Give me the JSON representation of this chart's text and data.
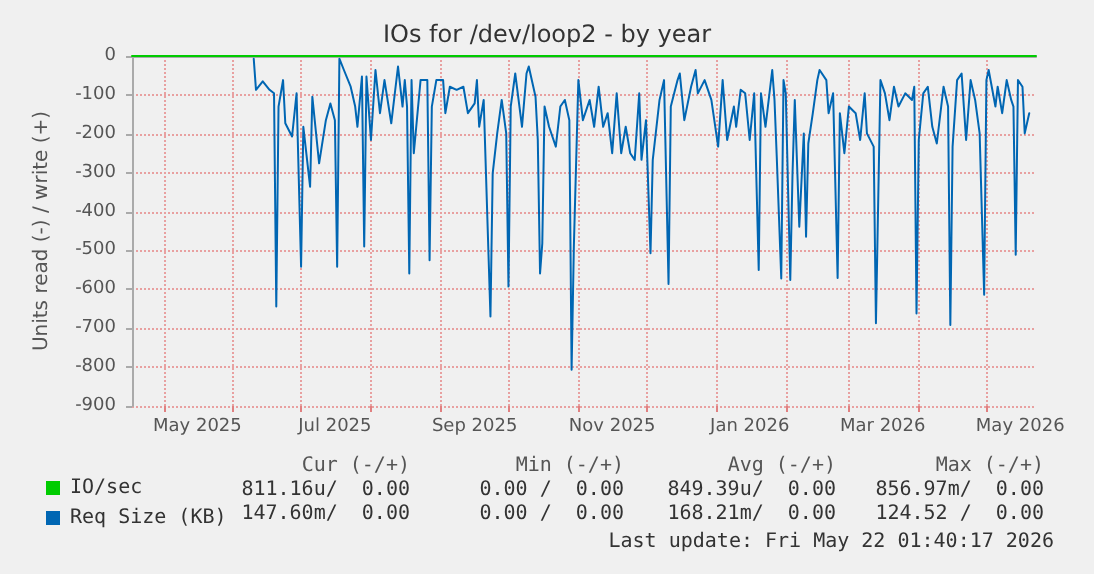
{
  "chart_data": {
    "type": "line",
    "title": "IOs for /dev/loop2 - by year",
    "ylabel": "Units read (-) / write (+)",
    "xlim": [
      "2025-04-17",
      "2026-05-23"
    ],
    "xticks": [
      {
        "value": "2025-05-01",
        "label": null
      },
      {
        "value": "2025-05-16",
        "label": "May 2025"
      },
      {
        "value": "2025-06-01",
        "label": null
      },
      {
        "value": "2025-07-01",
        "label": null
      },
      {
        "value": "2025-07-16",
        "label": "Jul 2025"
      },
      {
        "value": "2025-08-01",
        "label": null
      },
      {
        "value": "2025-09-01",
        "label": null
      },
      {
        "value": "2025-09-16",
        "label": "Sep 2025"
      },
      {
        "value": "2025-10-01",
        "label": null
      },
      {
        "value": "2025-11-01",
        "label": null
      },
      {
        "value": "2025-11-16",
        "label": "Nov 2025"
      },
      {
        "value": "2025-12-01",
        "label": null
      },
      {
        "value": "2026-01-01",
        "label": null
      },
      {
        "value": "2026-01-16",
        "label": "Jan 2026"
      },
      {
        "value": "2026-02-01",
        "label": null
      },
      {
        "value": "2026-03-01",
        "label": null
      },
      {
        "value": "2026-03-16",
        "label": "Mar 2026"
      },
      {
        "value": "2026-04-01",
        "label": null
      },
      {
        "value": "2026-05-01",
        "label": null
      },
      {
        "value": "2026-05-16",
        "label": "May 2026"
      }
    ],
    "ylim": [
      -900,
      0
    ],
    "yticks": [
      -900,
      -800,
      -700,
      -600,
      -500,
      -400,
      -300,
      -200,
      -100,
      0
    ],
    "grid": true,
    "legend": "bottom left",
    "line_style": "solid",
    "marker": "none",
    "series": [
      {
        "name": "IO/sec",
        "color": "#00cc00",
        "x": [
          "2025-04-17",
          "2026-05-23"
        ],
        "values": [
          0,
          0
        ]
      },
      {
        "name": "Req Size (KB)",
        "color": "#0066b3",
        "x": [
          "2025-06-10",
          "2025-06-11",
          "2025-06-14",
          "2025-06-17",
          "2025-06-19",
          "2025-06-20",
          "2025-06-21",
          "2025-06-23",
          "2025-06-24",
          "2025-06-27",
          "2025-06-29",
          "2025-07-01",
          "2025-07-02",
          "2025-07-05",
          "2025-07-06",
          "2025-07-09",
          "2025-07-12",
          "2025-07-14",
          "2025-07-16",
          "2025-07-17",
          "2025-07-18",
          "2025-07-20",
          "2025-07-23",
          "2025-07-25",
          "2025-07-26",
          "2025-07-28",
          "2025-07-29",
          "2025-07-30",
          "2025-08-01",
          "2025-08-03",
          "2025-08-05",
          "2025-08-07",
          "2025-08-10",
          "2025-08-13",
          "2025-08-15",
          "2025-08-16",
          "2025-08-17",
          "2025-08-18",
          "2025-08-19",
          "2025-08-20",
          "2025-08-23",
          "2025-08-26",
          "2025-08-27",
          "2025-08-28",
          "2025-08-30",
          "2025-09-02",
          "2025-09-03",
          "2025-09-05",
          "2025-09-08",
          "2025-09-11",
          "2025-09-13",
          "2025-09-16",
          "2025-09-17",
          "2025-09-18",
          "2025-09-20",
          "2025-09-23",
          "2025-09-24",
          "2025-09-26",
          "2025-09-28",
          "2025-09-30",
          "2025-10-01",
          "2025-10-02",
          "2025-10-04",
          "2025-10-07",
          "2025-10-09",
          "2025-10-10",
          "2025-10-13",
          "2025-10-14",
          "2025-10-15",
          "2025-10-16",
          "2025-10-17",
          "2025-10-19",
          "2025-10-22",
          "2025-10-24",
          "2025-10-26",
          "2025-10-28",
          "2025-10-29",
          "2025-10-30",
          "2025-11-01",
          "2025-11-03",
          "2025-11-06",
          "2025-11-08",
          "2025-11-10",
          "2025-11-12",
          "2025-11-14",
          "2025-11-16",
          "2025-11-18",
          "2025-11-20",
          "2025-11-22",
          "2025-11-24",
          "2025-11-26",
          "2025-11-28",
          "2025-11-29",
          "2025-12-01",
          "2025-12-03",
          "2025-12-04",
          "2025-12-07",
          "2025-12-09",
          "2025-12-11",
          "2025-12-12",
          "2025-12-15",
          "2025-12-16",
          "2025-12-18",
          "2025-12-21",
          "2025-12-23",
          "2025-12-24",
          "2025-12-27",
          "2025-12-30",
          "2026-01-02",
          "2026-01-04",
          "2026-01-06",
          "2026-01-09",
          "2026-01-10",
          "2026-01-12",
          "2026-01-14",
          "2026-01-16",
          "2026-01-18",
          "2026-01-20",
          "2026-01-21",
          "2026-01-23",
          "2026-01-26",
          "2026-01-27",
          "2026-01-28",
          "2026-01-30",
          "2026-01-31",
          "2026-02-01",
          "2026-02-03",
          "2026-02-04",
          "2026-02-05",
          "2026-02-07",
          "2026-02-09",
          "2026-02-10",
          "2026-02-11",
          "2026-02-13",
          "2026-02-15",
          "2026-02-16",
          "2026-02-19",
          "2026-02-20",
          "2026-02-22",
          "2026-02-24",
          "2026-02-25",
          "2026-02-27",
          "2026-03-01",
          "2026-03-04",
          "2026-03-06",
          "2026-03-08",
          "2026-03-09",
          "2026-03-12",
          "2026-03-13",
          "2026-03-15",
          "2026-03-17",
          "2026-03-19",
          "2026-03-21",
          "2026-03-23",
          "2026-03-26",
          "2026-03-29",
          "2026-03-30",
          "2026-03-31",
          "2026-04-01",
          "2026-04-03",
          "2026-04-05",
          "2026-04-07",
          "2026-04-09",
          "2026-04-12",
          "2026-04-14",
          "2026-04-15",
          "2026-04-16",
          "2026-04-18",
          "2026-04-20",
          "2026-04-22",
          "2026-04-24",
          "2026-04-26",
          "2026-04-28",
          "2026-04-30",
          "2026-05-01",
          "2026-05-02",
          "2026-05-05",
          "2026-05-06",
          "2026-05-08",
          "2026-05-10",
          "2026-05-12",
          "2026-05-13",
          "2026-05-14",
          "2026-05-15",
          "2026-05-17",
          "2026-05-18",
          "2026-05-20"
        ],
        "values": [
          -7,
          -87,
          -65,
          -87,
          -96,
          -644,
          -130,
          -62,
          -173,
          -207,
          -96,
          -542,
          -182,
          -336,
          -105,
          -276,
          -165,
          -122,
          -165,
          -542,
          -7,
          -36,
          -79,
          -130,
          -182,
          -53,
          -490,
          -53,
          -216,
          -36,
          -147,
          -62,
          -173,
          -27,
          -130,
          -62,
          -130,
          -559,
          -62,
          -250,
          -62,
          -62,
          -525,
          -130,
          -62,
          -62,
          -147,
          -79,
          -87,
          -79,
          -147,
          -122,
          -62,
          -182,
          -113,
          -670,
          -302,
          -199,
          -113,
          -199,
          -593,
          -130,
          -45,
          -182,
          -45,
          -27,
          -105,
          -216,
          -559,
          -482,
          -130,
          -182,
          -233,
          -130,
          -113,
          -165,
          -807,
          -490,
          -62,
          -165,
          -113,
          -182,
          -79,
          -182,
          -147,
          -250,
          -96,
          -250,
          -182,
          -250,
          -267,
          -96,
          -267,
          -165,
          -507,
          -267,
          -113,
          -62,
          -586,
          -130,
          -62,
          -45,
          -165,
          -79,
          -36,
          -96,
          -62,
          -113,
          -233,
          -62,
          -216,
          -130,
          -182,
          -87,
          -96,
          -216,
          -96,
          -550,
          -96,
          -182,
          -36,
          -113,
          -259,
          -572,
          -62,
          -96,
          -576,
          -302,
          -113,
          -439,
          -199,
          -465,
          -225,
          -147,
          -62,
          -36,
          -62,
          -147,
          -96,
          -571,
          -147,
          -250,
          -130,
          -147,
          -216,
          -96,
          -199,
          -233,
          -687,
          -62,
          -96,
          -165,
          -79,
          -130,
          -96,
          -113,
          -79,
          -662,
          -216,
          -96,
          -79,
          -182,
          -225,
          -79,
          -130,
          -692,
          -233,
          -62,
          -45,
          -216,
          -62,
          -113,
          -199,
          -614,
          -62,
          -36,
          -130,
          -79,
          -147,
          -62,
          -113,
          -130,
          -511,
          -62,
          -79,
          -199,
          -147
        ]
      }
    ],
    "annotations": [
      "Cur (-/+)",
      "Min (-/+)",
      "Avg (-/+)",
      "Max (-/+)",
      "811.16u/  0.00",
      "0.00 /  0.00",
      "849.39u/  0.00",
      "856.97m/  0.00",
      "147.60m/  0.00",
      "0.00 /  0.00",
      "168.21m/  0.00",
      "124.52 /  0.00",
      "Last update: Fri May 22 01:40:17 2026"
    ]
  }
}
